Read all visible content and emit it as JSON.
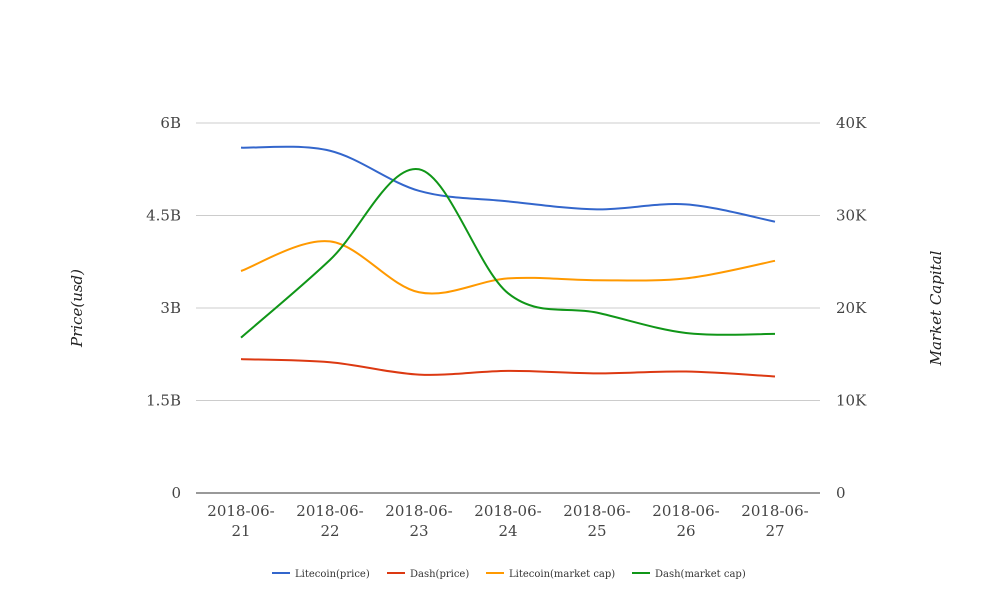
{
  "chart_data": {
    "type": "line",
    "categories": [
      [
        "2018-06-",
        "21"
      ],
      [
        "2018-06-",
        "22"
      ],
      [
        "2018-06-",
        "23"
      ],
      [
        "2018-06-",
        "24"
      ],
      [
        "2018-06-",
        "25"
      ],
      [
        "2018-06-",
        "26"
      ],
      [
        "2018-06-",
        "27"
      ]
    ],
    "left_axis": {
      "label": "Price(usd)",
      "ticks": [
        "0",
        "1.5B",
        "3B",
        "4.5B",
        "6B"
      ],
      "range": [
        0,
        6000000000
      ]
    },
    "right_axis": {
      "label": "Market Capital",
      "ticks": [
        "0",
        "10K",
        "20K",
        "30K",
        "40K"
      ],
      "range": [
        0,
        40000
      ]
    },
    "grid": true,
    "legend_position": "bottom",
    "series": [
      {
        "name": "Litecoin(price)",
        "color": "#3366cc",
        "axis": "left",
        "values": [
          5600000000,
          5550000000,
          4900000000,
          4730000000,
          4600000000,
          4680000000,
          4400000000
        ]
      },
      {
        "name": "Dash(price)",
        "color": "#dc3912",
        "axis": "left",
        "values": [
          2170000000,
          2120000000,
          1920000000,
          1980000000,
          1940000000,
          1970000000,
          1890000000
        ]
      },
      {
        "name": "Litecoin(market cap)",
        "color": "#ff9900",
        "axis": "right",
        "values": [
          24000,
          27200,
          21700,
          23200,
          23000,
          23200,
          25100
        ]
      },
      {
        "name": "Dash(market cap)",
        "color": "#109618",
        "axis": "right",
        "values": [
          16800,
          25200,
          35000,
          21600,
          19500,
          17300,
          17200
        ]
      }
    ]
  }
}
